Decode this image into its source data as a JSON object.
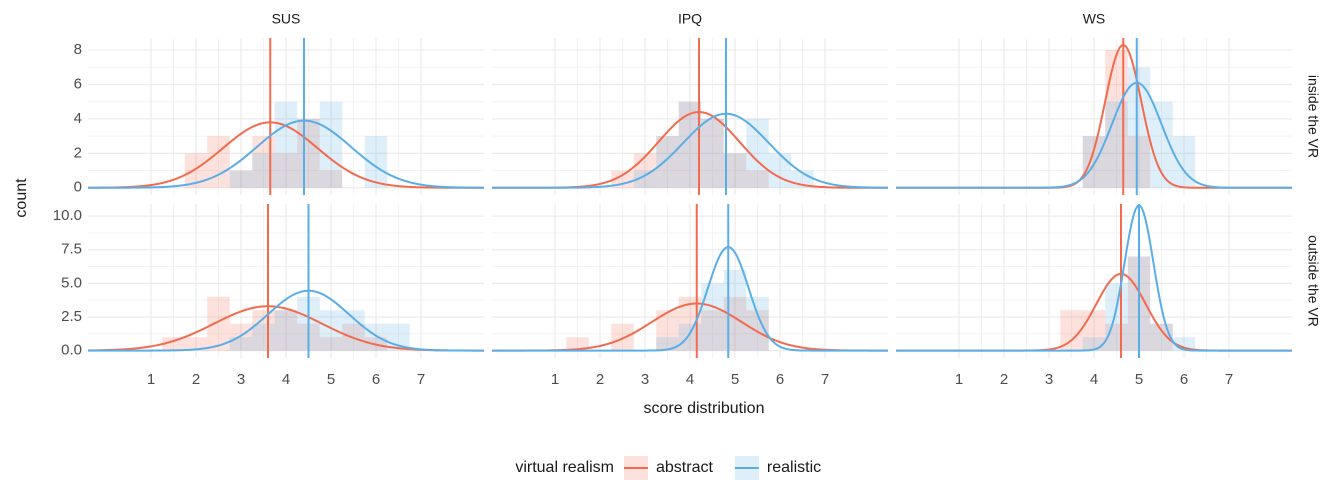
{
  "chart_data": {
    "type": "histogram",
    "x_label": "score distribution",
    "y_label": "count",
    "legend_title": "virtual realism",
    "columns": [
      "SUS",
      "IPQ",
      "WS"
    ],
    "rows": [
      "inside the VR",
      "outside the VR"
    ],
    "series": [
      {
        "name": "abstract",
        "color": "#f26b4f"
      },
      {
        "name": "realistic",
        "color": "#5aaee8"
      }
    ],
    "bins": [
      0.75,
      1.25,
      1.75,
      2.25,
      2.75,
      3.25,
      3.75,
      4.25,
      4.75,
      5.25,
      5.75,
      6.25,
      6.75,
      7.25
    ],
    "xlim": [
      -0.4,
      8.4
    ],
    "xticks": [
      1,
      2,
      3,
      4,
      5,
      6,
      7
    ],
    "row_axes": [
      {
        "ylim": [
          -0.42,
          8.7
        ],
        "yticks": [
          0,
          2,
          4,
          6,
          8
        ]
      },
      {
        "ylim": [
          -0.55,
          10.9
        ],
        "yticks": [
          {
            "value": 0,
            "label": "0.0"
          },
          {
            "value": 2.5,
            "label": "2.5"
          },
          {
            "value": 5,
            "label": "5.0"
          },
          {
            "value": 7.5,
            "label": "7.5"
          },
          {
            "value": 10,
            "label": "10.0"
          }
        ]
      }
    ],
    "grid": true,
    "panels": [
      {
        "series": [
          {
            "values": [
              0,
              0,
              2,
              3,
              1,
              3,
              2,
              4,
              1,
              0,
              0,
              0,
              0
            ],
            "mean": 3.65,
            "sd": 1.05,
            "curve_peak": 3.8
          },
          {
            "values": [
              0,
              0,
              0,
              0,
              1,
              2,
              5,
              4,
              5,
              0,
              3,
              0,
              0
            ],
            "mean": 4.4,
            "sd": 1.05,
            "curve_peak": 3.9
          }
        ]
      },
      {
        "series": [
          {
            "values": [
              0,
              0,
              0,
              1,
              2,
              3,
              5,
              4,
              2,
              1,
              0,
              0,
              0
            ],
            "mean": 4.2,
            "sd": 0.9,
            "curve_peak": 4.4
          },
          {
            "values": [
              0,
              0,
              0,
              0,
              1,
              3,
              5,
              4,
              2,
              4,
              2,
              1,
              0
            ],
            "mean": 4.8,
            "sd": 0.95,
            "curve_peak": 4.3
          }
        ]
      },
      {
        "series": [
          {
            "values": [
              0,
              0,
              0,
              0,
              0,
              0,
              3,
              8,
              3,
              0,
              0,
              0,
              0
            ],
            "mean": 4.65,
            "sd": 0.4,
            "curve_peak": 8.3
          },
          {
            "values": [
              0,
              0,
              0,
              0,
              0,
              0,
              3,
              5,
              7,
              5,
              3,
              0,
              0
            ],
            "mean": 4.95,
            "sd": 0.55,
            "curve_peak": 6.1
          }
        ]
      },
      {
        "series": [
          {
            "values": [
              0,
              1,
              1,
              4,
              2,
              3,
              3,
              2,
              1,
              2,
              1,
              0,
              0
            ],
            "mean": 3.6,
            "sd": 1.2,
            "curve_peak": 3.3
          },
          {
            "values": [
              0,
              0,
              0,
              0,
              1,
              2,
              3,
              4,
              3,
              3,
              2,
              2,
              0
            ],
            "mean": 4.5,
            "sd": 0.9,
            "curve_peak": 4.45
          }
        ]
      },
      {
        "series": [
          {
            "values": [
              0,
              1,
              0,
              2,
              0,
              3,
              4,
              3,
              4,
              3,
              0,
              0,
              0
            ],
            "mean": 4.15,
            "sd": 1.0,
            "curve_peak": 3.5
          },
          {
            "values": [
              0,
              0,
              0,
              0,
              0,
              1,
              2,
              5,
              6,
              4,
              0,
              0,
              0
            ],
            "mean": 4.85,
            "sd": 0.45,
            "curve_peak": 7.7
          }
        ]
      },
      {
        "series": [
          {
            "values": [
              0,
              0,
              0,
              0,
              0,
              3,
              3,
              2,
              7,
              2,
              0,
              0,
              0
            ],
            "mean": 4.6,
            "sd": 0.55,
            "curve_peak": 5.7
          },
          {
            "values": [
              0,
              0,
              0,
              0,
              0,
              0,
              1,
              5,
              7,
              2,
              1,
              0,
              0
            ],
            "mean": 5.0,
            "sd": 0.32,
            "curve_peak": 10.8
          }
        ]
      }
    ]
  }
}
